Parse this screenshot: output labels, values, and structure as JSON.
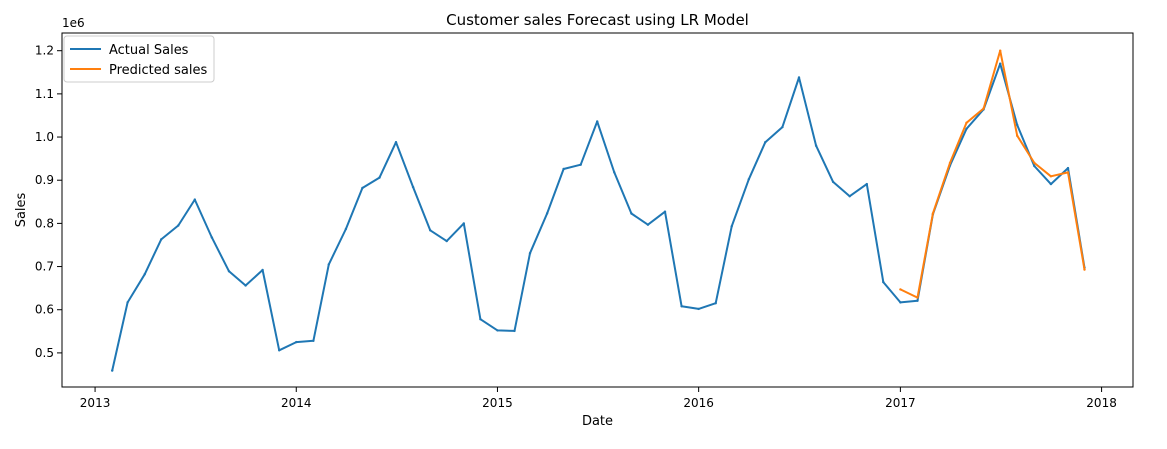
{
  "chart_data": {
    "type": "line",
    "title": "Customer sales Forecast using LR Model",
    "xlabel": "Date",
    "ylabel": "Sales",
    "y_offset_label": "1e6",
    "y_scale": 1000000,
    "xlim": [
      "2012-11-02",
      "2018-02-27"
    ],
    "ylim": [
      421000,
      1241000
    ],
    "x_ticks": [
      {
        "date": "2013-01-01",
        "label": "2013"
      },
      {
        "date": "2014-01-01",
        "label": "2014"
      },
      {
        "date": "2015-01-01",
        "label": "2015"
      },
      {
        "date": "2016-01-01",
        "label": "2016"
      },
      {
        "date": "2017-01-01",
        "label": "2017"
      },
      {
        "date": "2018-01-01",
        "label": "2018"
      }
    ],
    "y_ticks": [
      {
        "value": 500000,
        "label": "0.5"
      },
      {
        "value": 600000,
        "label": "0.6"
      },
      {
        "value": 700000,
        "label": "0.7"
      },
      {
        "value": 800000,
        "label": "0.8"
      },
      {
        "value": 900000,
        "label": "0.9"
      },
      {
        "value": 1000000,
        "label": "1.0"
      },
      {
        "value": 1100000,
        "label": "1.1"
      },
      {
        "value": 1200000,
        "label": "1.2"
      }
    ],
    "grid": false,
    "legend_position": "top-left",
    "series": [
      {
        "name": "Actual Sales",
        "color": "#1f77b4",
        "x": [
          "2013-02-01",
          "2013-03-01",
          "2013-04-01",
          "2013-05-01",
          "2013-06-01",
          "2013-07-01",
          "2013-08-01",
          "2013-09-01",
          "2013-10-01",
          "2013-11-01",
          "2013-12-01",
          "2014-01-01",
          "2014-02-01",
          "2014-03-01",
          "2014-04-01",
          "2014-05-01",
          "2014-06-01",
          "2014-07-01",
          "2014-08-01",
          "2014-09-01",
          "2014-10-01",
          "2014-11-01",
          "2014-12-01",
          "2015-01-01",
          "2015-02-01",
          "2015-03-01",
          "2015-04-01",
          "2015-05-01",
          "2015-06-01",
          "2015-07-01",
          "2015-08-01",
          "2015-09-01",
          "2015-10-01",
          "2015-11-01",
          "2015-12-01",
          "2016-01-01",
          "2016-02-01",
          "2016-03-01",
          "2016-04-01",
          "2016-05-01",
          "2016-06-01",
          "2016-07-01",
          "2016-08-01",
          "2016-09-01",
          "2016-10-01",
          "2016-11-01",
          "2016-12-01",
          "2017-01-01",
          "2017-02-01",
          "2017-03-01",
          "2017-04-01",
          "2017-05-01",
          "2017-06-01",
          "2017-07-01",
          "2017-08-01",
          "2017-09-01",
          "2017-10-01",
          "2017-11-01",
          "2017-12-01"
        ],
        "values": [
          459000,
          617000,
          682000,
          763000,
          795000,
          855000,
          767000,
          689000,
          656000,
          692000,
          506000,
          525000,
          528000,
          705000,
          787000,
          882000,
          906000,
          988000,
          884000,
          784000,
          759000,
          800000,
          578000,
          552000,
          551000,
          731000,
          823000,
          926000,
          936000,
          1036000,
          918000,
          823000,
          797000,
          827000,
          608000,
          602000,
          615000,
          793000,
          902000,
          988000,
          1023000,
          1138000,
          980000,
          896000,
          863000,
          891000,
          664000,
          617000,
          621000,
          821000,
          934000,
          1019000,
          1064000,
          1170000,
          1028000,
          933000,
          891000,
          928000,
          697000
        ]
      },
      {
        "name": "Predicted sales",
        "color": "#ff7f0e",
        "x": [
          "2017-01-01",
          "2017-02-01",
          "2017-03-01",
          "2017-04-01",
          "2017-05-01",
          "2017-06-01",
          "2017-07-01",
          "2017-08-01",
          "2017-09-01",
          "2017-10-01",
          "2017-11-01",
          "2017-12-01"
        ],
        "values": [
          647000,
          628000,
          823000,
          940000,
          1033000,
          1066000,
          1200000,
          1003000,
          940000,
          909000,
          918000,
          693000
        ]
      }
    ]
  }
}
